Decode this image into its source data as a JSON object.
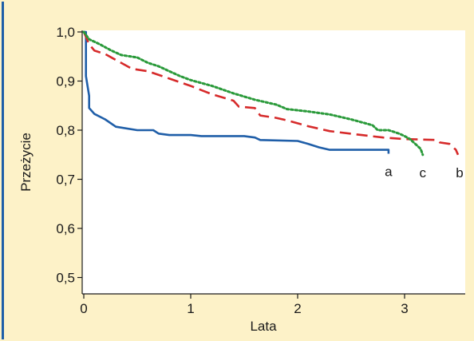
{
  "chart_data": {
    "type": "line",
    "title": "",
    "xlabel": "Lata",
    "ylabel": "Przeżycie",
    "xlim": [
      0,
      3.5
    ],
    "ylim": [
      0.47,
      1.0
    ],
    "xticks": [
      0,
      1,
      2,
      3
    ],
    "xtick_labels": [
      "0",
      "1",
      "2",
      "3"
    ],
    "yticks": [
      0.5,
      0.6,
      0.7,
      0.8,
      0.9,
      1.0
    ],
    "ytick_labels": [
      "0,5",
      "0,6",
      "0,7",
      "0,8",
      "0,9",
      "1,0"
    ],
    "grid": false,
    "series": [
      {
        "name": "a",
        "color": "#1f5ea8",
        "style": "solid",
        "points": [
          [
            0.0,
            1.0
          ],
          [
            0.02,
            1.0
          ],
          [
            0.02,
            0.91
          ],
          [
            0.05,
            0.87
          ],
          [
            0.05,
            0.845
          ],
          [
            0.1,
            0.833
          ],
          [
            0.2,
            0.822
          ],
          [
            0.3,
            0.807
          ],
          [
            0.5,
            0.8
          ],
          [
            0.65,
            0.8
          ],
          [
            0.7,
            0.793
          ],
          [
            0.8,
            0.79
          ],
          [
            1.0,
            0.79
          ],
          [
            1.1,
            0.788
          ],
          [
            1.5,
            0.788
          ],
          [
            1.6,
            0.785
          ],
          [
            1.65,
            0.78
          ],
          [
            2.0,
            0.778
          ],
          [
            2.1,
            0.772
          ],
          [
            2.2,
            0.765
          ],
          [
            2.3,
            0.76
          ],
          [
            2.85,
            0.76
          ],
          [
            2.85,
            0.752
          ]
        ]
      },
      {
        "name": "b",
        "color": "#d62a2a",
        "style": "dashed",
        "points": [
          [
            0.0,
            1.0
          ],
          [
            0.05,
            0.975
          ],
          [
            0.1,
            0.962
          ],
          [
            0.2,
            0.955
          ],
          [
            0.3,
            0.943
          ],
          [
            0.45,
            0.925
          ],
          [
            0.6,
            0.92
          ],
          [
            0.8,
            0.905
          ],
          [
            1.0,
            0.89
          ],
          [
            1.2,
            0.873
          ],
          [
            1.4,
            0.86
          ],
          [
            1.45,
            0.848
          ],
          [
            1.6,
            0.845
          ],
          [
            1.65,
            0.83
          ],
          [
            1.8,
            0.825
          ],
          [
            1.9,
            0.82
          ],
          [
            2.1,
            0.808
          ],
          [
            2.3,
            0.798
          ],
          [
            2.6,
            0.79
          ],
          [
            2.8,
            0.785
          ],
          [
            3.0,
            0.782
          ],
          [
            3.3,
            0.78
          ],
          [
            3.33,
            0.775
          ],
          [
            3.42,
            0.772
          ],
          [
            3.48,
            0.76
          ],
          [
            3.5,
            0.75
          ]
        ]
      },
      {
        "name": "c",
        "color": "#2a9a3a",
        "style": "dotted",
        "points": [
          [
            0.0,
            1.0
          ],
          [
            0.05,
            0.985
          ],
          [
            0.15,
            0.975
          ],
          [
            0.25,
            0.963
          ],
          [
            0.35,
            0.953
          ],
          [
            0.5,
            0.948
          ],
          [
            0.6,
            0.937
          ],
          [
            0.7,
            0.93
          ],
          [
            0.8,
            0.92
          ],
          [
            0.9,
            0.91
          ],
          [
            1.0,
            0.902
          ],
          [
            1.2,
            0.89
          ],
          [
            1.4,
            0.875
          ],
          [
            1.6,
            0.862
          ],
          [
            1.8,
            0.852
          ],
          [
            1.9,
            0.843
          ],
          [
            2.1,
            0.838
          ],
          [
            2.3,
            0.832
          ],
          [
            2.5,
            0.822
          ],
          [
            2.7,
            0.81
          ],
          [
            2.75,
            0.8
          ],
          [
            2.85,
            0.8
          ],
          [
            2.95,
            0.793
          ],
          [
            3.0,
            0.788
          ],
          [
            3.05,
            0.782
          ],
          [
            3.1,
            0.772
          ],
          [
            3.15,
            0.762
          ],
          [
            3.17,
            0.75
          ]
        ]
      }
    ]
  }
}
